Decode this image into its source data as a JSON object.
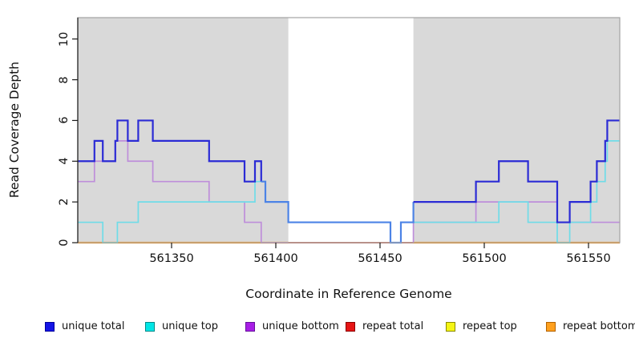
{
  "chart_data": {
    "type": "line",
    "subtype": "step-coverage-plot",
    "title": "",
    "xlabel": "Coordinate in Reference Genome",
    "ylabel": "Read Coverage Depth",
    "xlim": [
      561305,
      561565
    ],
    "ylim": [
      0,
      11.05
    ],
    "x_ticks": [
      561350,
      561400,
      561450,
      561500,
      561550
    ],
    "y_ticks": [
      0,
      2,
      4,
      6,
      8,
      10
    ],
    "grid": false,
    "plot_background": "#ffffff",
    "shaded_regions": [
      {
        "name": "left-gray-region",
        "from": 561305,
        "to": 561406,
        "color": "#d9d9d9"
      },
      {
        "name": "right-gray-region",
        "from": 561466,
        "to": 561565,
        "color": "#d9d9d9"
      }
    ],
    "gap_region": {
      "from": 561406,
      "to": 561466,
      "color": "#ffffff"
    },
    "box_color": "#a3a3a3",
    "axis_color": "#1a1a1a",
    "series": [
      {
        "name": "repeat top",
        "color": "#f5e626",
        "width": 1.7,
        "points": [
          [
            561305,
            0
          ]
        ],
        "end": 561565
      },
      {
        "name": "repeat total",
        "color": "#ce4f68",
        "width": 1.7,
        "points": [
          [
            561305,
            0
          ]
        ],
        "end": 561565
      },
      {
        "name": "repeat bottom",
        "color": "#ff9d20",
        "width": 2.2,
        "draw_spans": [
          [
            561305,
            561406
          ],
          [
            561466,
            561565
          ]
        ],
        "points": [
          [
            561305,
            0
          ]
        ],
        "end": 561565
      },
      {
        "name": "unique bottom",
        "color": "#be8eda",
        "width": 1.7,
        "draw_spans": [
          [
            561305,
            561406
          ],
          [
            561466,
            561565
          ]
        ],
        "points": [
          [
            561305,
            3
          ],
          [
            561313,
            4
          ],
          [
            561323,
            5
          ],
          [
            561329,
            4
          ],
          [
            561341,
            3
          ],
          [
            561368,
            2
          ],
          [
            561385,
            1
          ],
          [
            561393,
            0
          ],
          [
            561466,
            1
          ],
          [
            561496,
            2
          ],
          [
            561535,
            1
          ]
        ],
        "end": 561565
      },
      {
        "name": "unique top",
        "color": "#6fdce8",
        "width": 1.7,
        "points": [
          [
            561305,
            1
          ],
          [
            561317,
            0
          ],
          [
            561324,
            1
          ],
          [
            561334,
            2
          ],
          [
            561390,
            3
          ],
          [
            561395,
            2
          ],
          [
            561406,
            1
          ],
          [
            561455,
            0
          ],
          [
            561460,
            1
          ],
          [
            561507,
            2
          ],
          [
            561521,
            1
          ],
          [
            561535,
            0
          ],
          [
            561541,
            1
          ],
          [
            561551,
            2
          ],
          [
            561554,
            3
          ],
          [
            561558,
            4
          ],
          [
            561559,
            5
          ]
        ],
        "end": 561565
      },
      {
        "name": "unique total",
        "color": "#2b2bd5",
        "width": 2.2,
        "color_spans": [
          [
            561305,
            561393,
            "#2b2bd5"
          ],
          [
            561393,
            561466,
            "#4c83e6"
          ],
          [
            561466,
            561565,
            "#2b2bd5"
          ]
        ],
        "points": [
          [
            561305,
            4
          ],
          [
            561313,
            5
          ],
          [
            561317,
            4
          ],
          [
            561323,
            5
          ],
          [
            561324,
            6
          ],
          [
            561329,
            5
          ],
          [
            561334,
            6
          ],
          [
            561341,
            5
          ],
          [
            561368,
            4
          ],
          [
            561385,
            3
          ],
          [
            561390,
            4
          ],
          [
            561393,
            3
          ],
          [
            561395,
            2
          ],
          [
            561406,
            1
          ],
          [
            561455,
            0
          ],
          [
            561460,
            1
          ],
          [
            561466,
            2
          ],
          [
            561496,
            3
          ],
          [
            561507,
            4
          ],
          [
            561521,
            3
          ],
          [
            561535,
            1
          ],
          [
            561541,
            2
          ],
          [
            561551,
            3
          ],
          [
            561554,
            4
          ],
          [
            561558,
            5
          ],
          [
            561559,
            6
          ]
        ],
        "end": 561565
      }
    ],
    "legend": {
      "position": "bottom",
      "entries": [
        {
          "label": "unique total",
          "fill": "#1414e6",
          "border": "#00009b"
        },
        {
          "label": "unique top",
          "fill": "#00e6e6",
          "border": "#008989"
        },
        {
          "label": "unique bottom",
          "fill": "#a81ee6",
          "border": "#65109b"
        },
        {
          "label": "repeat total",
          "fill": "#e61414",
          "border": "#8b0000"
        },
        {
          "label": "repeat top",
          "fill": "#f5f514",
          "border": "#8b8b00"
        },
        {
          "label": "repeat bottom",
          "fill": "#ffa01e",
          "border": "#b36200"
        }
      ]
    }
  }
}
